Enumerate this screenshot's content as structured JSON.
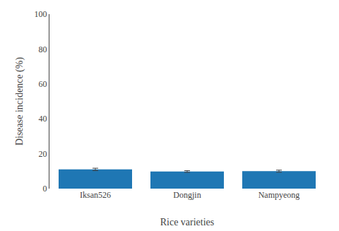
{
  "chart_data": {
    "type": "bar",
    "categories": [
      "Iksan526",
      "Dongjin",
      "Nampyeong"
    ],
    "values": [
      11.0,
      9.8,
      10.0
    ],
    "errors": [
      0.7,
      0.5,
      0.6
    ],
    "xlabel": "Rice varieties",
    "ylabel": "Disease incidence (%)",
    "ylim": [
      0,
      100
    ],
    "yticks": [
      0,
      20,
      40,
      60,
      80,
      100
    ],
    "grid": false
  }
}
